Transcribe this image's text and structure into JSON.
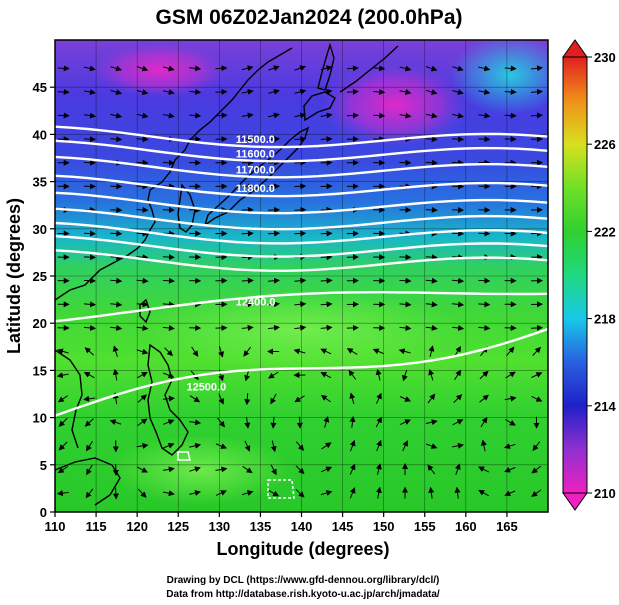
{
  "title": "GSM 06Z02Jan2024 (200.0hPa)",
  "x_axis": {
    "label": "Longitude (degrees)",
    "ticks": [
      "110",
      "115",
      "120",
      "125",
      "130",
      "135",
      "140",
      "145",
      "150",
      "155",
      "160",
      "165"
    ],
    "range": [
      110,
      170
    ]
  },
  "y_axis": {
    "label": "Latitude  (degrees)",
    "ticks": [
      "0",
      "5",
      "10",
      "15",
      "20",
      "25",
      "30",
      "35",
      "40",
      "45"
    ],
    "range": [
      0,
      50
    ]
  },
  "colorbar": {
    "ticks": [
      "210",
      "214",
      "218",
      "222",
      "226",
      "230"
    ],
    "range": [
      210,
      230
    ]
  },
  "height_contours": [
    {
      "value": 11500,
      "label": "11500.0",
      "lat_at_140E": 39.5
    },
    {
      "value": 11600,
      "label": "11600.0",
      "lat_at_140E": 38.0
    },
    {
      "value": 11700,
      "label": "11700.0",
      "lat_at_140E": 36.3
    },
    {
      "value": 11800,
      "label": "11800.0",
      "lat_at_140E": 34.3
    },
    {
      "value": 11900,
      "label": "",
      "lat_at_140E": 32.5
    },
    {
      "value": 12000,
      "label": "",
      "lat_at_140E": 30.8
    },
    {
      "value": 12100,
      "label": "",
      "lat_at_140E": 29.3
    },
    {
      "value": 12200,
      "label": "",
      "lat_at_140E": 27.9
    },
    {
      "value": 12300,
      "label": "",
      "lat_at_140E": 26.4
    },
    {
      "value": 12400,
      "label": "12400.0",
      "lat_at_140E": 22.3
    },
    {
      "value": 12500,
      "label": "12500.0",
      "lat_at_140E": 15.0
    }
  ],
  "credits": {
    "line1": "Drawing by DCL (https://www.gfd-dennou.org/library/dcl/)",
    "line2": "Data from http://database.rish.kyoto-u.ac.jp/arch/jmadata/"
  },
  "colors": {
    "purple": "#9b1fb8",
    "magenta": "#e020c8",
    "blue": "#2a2ad8",
    "cyan": "#18c8e8",
    "green": "#30d030",
    "lime": "#60f040",
    "yellow": "#e8e820",
    "orange": "#f08818",
    "red": "#e02018"
  }
}
